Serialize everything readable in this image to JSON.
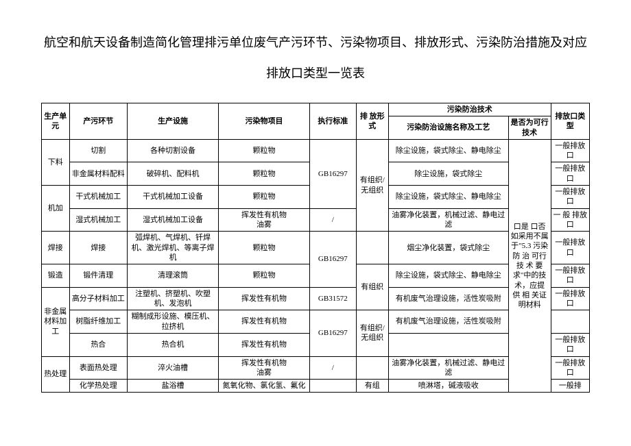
{
  "title": "航空和航天设备制造简化管理排污单位废气产污环节、污染物项目、排放形式、污染防治措施及对应排放口类型一览表",
  "headers": {
    "unit": "生产单元",
    "stage": "产污环节",
    "equipment": "生产设施",
    "pollutant": "污染物项目",
    "standard": "执行标准",
    "emission_form": "排 放形式",
    "tech_group": "污染防治技术",
    "tech_name": "污染防治设施名称及工艺",
    "feasible": "是否为可行技术",
    "outlet_type": "排放口类型"
  },
  "feasible_text": "口是 口否\n如采用不属于\"5.3 污染 防 治 可行 技 术 要求\"中的技术，应提 供 相 关证明材料",
  "rows": [
    {
      "unit": "下料",
      "stage": "切割",
      "equipment": "各种切割设备",
      "pollutant": "颗粒物",
      "standard": "GB16297",
      "form": "有组织/无组织",
      "tech": "除尘设施，袋式除尘、静电除尘",
      "outlet": "一般排放口"
    },
    {
      "stage": "非金属材料配料",
      "equipment": "破碎机、配料机",
      "pollutant": "颗粒物",
      "tech": "除尘设施，袋式除尘",
      "outlet": "一般排放口"
    },
    {
      "unit": "机加",
      "stage": "干式机械加工",
      "equipment": "干式机械加工设备",
      "pollutant": "颗粒物",
      "tech": "除尘设施，袋式除尘、静电除尘",
      "outlet": "一般排放口"
    },
    {
      "stage": "湿式机械加工",
      "equipment": "湿式机械加工设备",
      "pollutant": "挥发性有机物\n油雾",
      "standard": "/",
      "tech": "油雾净化装置，机械过滤、静电过滤",
      "outlet": "一 般 排放口"
    },
    {
      "unit": "焊接",
      "stage": "焊接",
      "equipment": "弧焊机、气焊机、钎焊机、激光焊机、等离子焊机",
      "pollutant": "颗粒物",
      "standard": "GB16297",
      "tech": "烟尘净化装置，袋式除尘",
      "outlet": "一般排放口"
    },
    {
      "unit": "锻造",
      "stage": "锻件清理",
      "equipment": "清理滚筒",
      "pollutant": "颗粒物",
      "form": "有组织",
      "tech": "除尘设施，袋式除尘、静电除尘",
      "outlet": "一般排放口"
    },
    {
      "unit": "非金属材料加工",
      "stage": "高分子材料加工",
      "equipment": "注塑机、挤塑机、吹塑机、发泡机",
      "pollutant": "挥发性有机物",
      "standard": "GB31572",
      "tech": "有机废气治理设施，活性炭吸附",
      "outlet": "一般排放口"
    },
    {
      "stage": "树脂纤维加工",
      "equipment": "糊制成形设施、模压机、拉挤机",
      "pollutant": "挥发性有机物",
      "standard": "GB16297",
      "form": "有组织/无组织",
      "tech": "有机废气治理设施，活性炭吸附",
      "outlet": ""
    },
    {
      "stage": "热合",
      "equipment": "热合机",
      "pollutant": "挥发性有机物",
      "tech": "",
      "outlet": "一般排放口"
    },
    {
      "unit": "热处理",
      "stage": "表面热处理",
      "equipment": "淬火油槽",
      "pollutant": "挥发性有机物\n油雾",
      "standard": "/",
      "tech": "油雾净化装置，机械过滤、静电过滤",
      "outlet": "一般排放口"
    },
    {
      "stage": "化学热处理",
      "equipment": "盐浴槽",
      "pollutant": "氮氧化物、氯化氢、氟化",
      "form": "有组",
      "tech": "喷淋塔，碱液吸收",
      "outlet": "一般排"
    }
  ]
}
